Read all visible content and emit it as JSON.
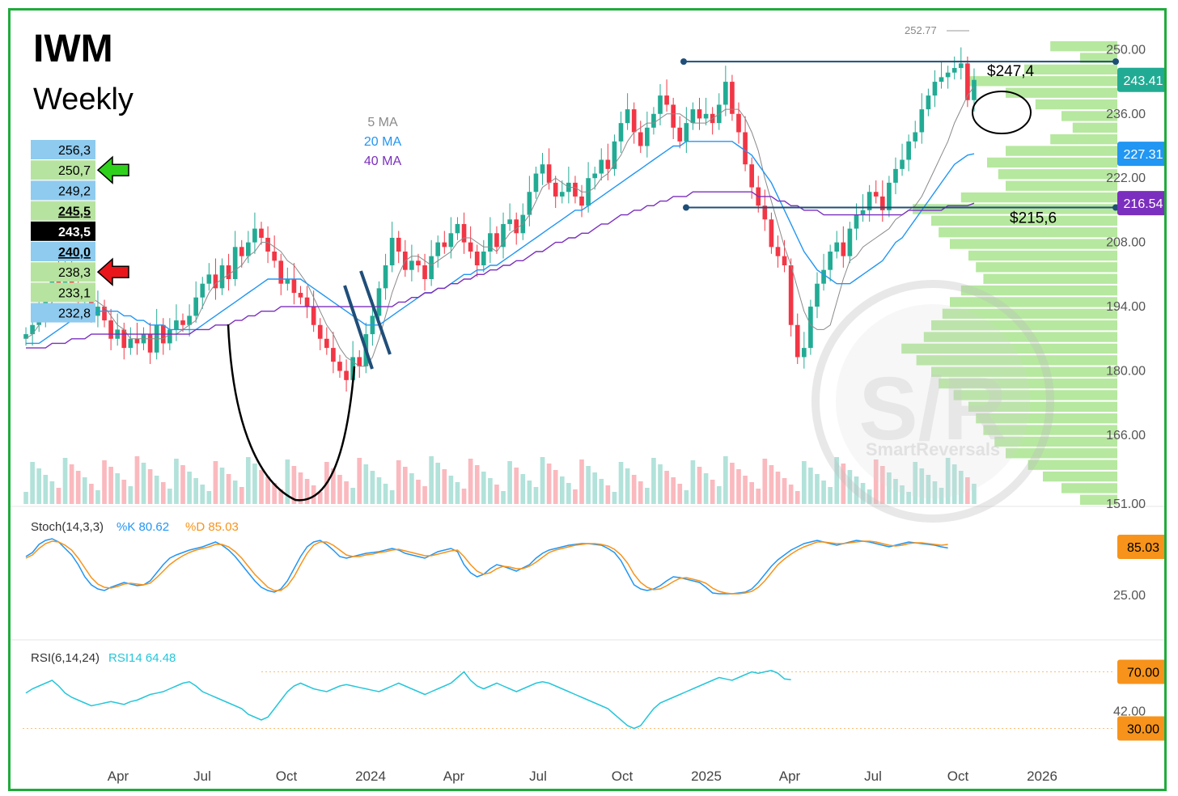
{
  "title": "IWM",
  "subtitle": "Weekly",
  "ma_legend": [
    "5 MA",
    "20 MA",
    "40 MA"
  ],
  "colors": {
    "frame": "#1fab3c",
    "up": "#22ab94",
    "down": "#f23645",
    "ma5": "#8a8a8a",
    "ma20": "#2196f3",
    "ma40": "#7b2fbe",
    "stochK": "#2196f3",
    "stochD": "#f7931a",
    "rsi": "#26c6da",
    "profile": "#9ee07f",
    "level_line": "#1f4e79"
  },
  "levels_table": [
    {
      "value": "256,3",
      "style": "blue"
    },
    {
      "value": "250,7",
      "style": "green",
      "arrow": "green-arrow-left"
    },
    {
      "value": "249,2",
      "style": "blue"
    },
    {
      "value": "245,5",
      "style": "green-bold"
    },
    {
      "value": "243,5",
      "style": "black"
    },
    {
      "value": "240,0",
      "style": "blue-bold"
    },
    {
      "value": "238,3",
      "style": "green",
      "arrow": "red-arrow-left"
    },
    {
      "value": "233,1",
      "style": "green"
    },
    {
      "value": "232,8",
      "style": "blue"
    }
  ],
  "annotations": {
    "resistance_label": "$247,4",
    "support_label": "$215,6",
    "high_label": "252.77"
  },
  "price_axis": {
    "ticks": [
      "250.00",
      "236.00",
      "222.00",
      "208.00",
      "194.00",
      "180.00",
      "166.00",
      "151.00"
    ],
    "badges": [
      {
        "text": "243.41",
        "color": "#22ab94"
      },
      {
        "text": "227.31",
        "color": "#2196f3"
      },
      {
        "text": "216.54",
        "color": "#7b2fbe"
      }
    ]
  },
  "stoch": {
    "label": "Stoch(14,3,3)",
    "k_label": "%K 80.62",
    "d_label": "%D 85.03",
    "badge": "85.03",
    "ticks": [
      "25.00"
    ]
  },
  "rsi": {
    "label": "RSI(6,14,24)",
    "value_label": "RSI14 64.48",
    "badges": [
      "70.00",
      "30.00"
    ],
    "ticks": [
      "42.00"
    ]
  },
  "time_axis": [
    "Apr",
    "Jul",
    "Oct",
    "2024",
    "Apr",
    "Jul",
    "Oct",
    "2025",
    "Apr",
    "Jul",
    "Oct",
    "2026"
  ],
  "watermark": "SmartReversals",
  "chart_data": {
    "type": "candlestick",
    "title": "IWM",
    "subtitle": "Weekly",
    "ylim": [
      151,
      255
    ],
    "close_series": [
      188,
      190,
      192,
      196,
      201,
      199,
      203,
      198,
      195,
      196,
      192,
      194,
      191,
      187,
      189,
      185,
      187,
      186,
      188,
      184,
      190,
      186,
      189,
      191,
      190,
      192,
      196,
      199,
      201,
      198,
      203,
      200,
      207,
      205,
      208,
      211,
      209,
      206,
      204,
      199,
      200,
      197,
      196,
      194,
      190,
      187,
      185,
      182,
      180,
      178,
      183,
      181,
      188,
      192,
      198,
      203,
      209,
      206,
      202,
      204,
      203,
      200,
      205,
      208,
      207,
      210,
      212,
      208,
      206,
      203,
      206,
      210,
      207,
      212,
      213,
      210,
      214,
      219,
      223,
      225,
      221,
      218,
      219,
      221,
      218,
      216,
      222,
      223,
      226,
      224,
      230,
      234,
      237,
      232,
      229,
      233,
      236,
      240,
      238,
      233,
      230,
      234,
      237,
      235,
      236,
      234,
      238,
      243,
      236,
      232,
      225,
      220,
      216,
      213,
      207,
      205,
      203,
      190,
      183,
      185,
      194,
      199,
      202,
      206,
      208,
      205,
      211,
      214,
      215,
      219,
      218,
      215,
      221,
      224,
      226,
      230,
      232,
      237,
      240,
      243,
      244,
      245,
      246,
      247,
      239,
      243.41
    ],
    "ma5": [
      187,
      188,
      190,
      193,
      195,
      197,
      199,
      199,
      199,
      198,
      196,
      195,
      194,
      192,
      190,
      189,
      187,
      187,
      187,
      187,
      187,
      187,
      188,
      188,
      189,
      190,
      191,
      194,
      197,
      199,
      200,
      201,
      202,
      203,
      205,
      206,
      208,
      208,
      207,
      206,
      204,
      203,
      201,
      199,
      196,
      193,
      190,
      188,
      185,
      183,
      182,
      181,
      181,
      183,
      187,
      192,
      197,
      201,
      204,
      205,
      205,
      204,
      203,
      204,
      205,
      206,
      208,
      209,
      209,
      208,
      207,
      207,
      206,
      208,
      210,
      211,
      212,
      214,
      217,
      220,
      221,
      222,
      221,
      220,
      220,
      219,
      219,
      220,
      222,
      223,
      225,
      227,
      230,
      232,
      233,
      234,
      234,
      235,
      236,
      236,
      236,
      235,
      234,
      234,
      234,
      235,
      236,
      237,
      237,
      237,
      235,
      232,
      228,
      222,
      217,
      212,
      207,
      203,
      198,
      193,
      190,
      189,
      189,
      190,
      195,
      200,
      204,
      205,
      207,
      208,
      209,
      210,
      211,
      213,
      214,
      215,
      216,
      218,
      221,
      224,
      227,
      230,
      234,
      237,
      240,
      242
    ],
    "ma20": [
      186,
      186,
      186,
      187,
      188,
      189,
      190,
      191,
      192,
      192,
      192,
      193,
      193,
      193,
      193,
      192,
      192,
      191,
      191,
      190,
      190,
      190,
      189,
      189,
      189,
      189,
      189,
      190,
      191,
      192,
      193,
      194,
      195,
      196,
      197,
      198,
      199,
      200,
      200,
      200,
      200,
      200,
      200,
      199,
      198,
      197,
      196,
      195,
      194,
      193,
      192,
      191,
      190,
      190,
      190,
      191,
      192,
      193,
      194,
      195,
      196,
      197,
      197,
      198,
      198,
      199,
      200,
      201,
      201,
      202,
      202,
      203,
      203,
      204,
      205,
      206,
      207,
      208,
      209,
      210,
      211,
      212,
      213,
      214,
      215,
      215,
      216,
      217,
      218,
      219,
      220,
      221,
      222,
      223,
      224,
      225,
      226,
      227,
      228,
      229,
      229,
      230,
      230,
      230,
      230,
      230,
      230,
      230,
      230,
      229,
      228,
      227,
      225,
      223,
      221,
      218,
      215,
      212,
      209,
      206,
      204,
      202,
      201,
      200,
      199,
      199,
      199,
      200,
      201,
      202,
      203,
      204,
      206,
      208,
      209,
      211,
      213,
      215,
      217,
      219,
      221,
      223,
      225,
      226,
      227,
      227.31
    ],
    "ma40": [
      185,
      185,
      185,
      185,
      186,
      186,
      186,
      187,
      187,
      187,
      188,
      188,
      188,
      188,
      188,
      188,
      188,
      188,
      188,
      188,
      188,
      188,
      188,
      188,
      188,
      188,
      189,
      189,
      189,
      190,
      190,
      190,
      191,
      191,
      192,
      192,
      193,
      193,
      193,
      194,
      194,
      194,
      194,
      194,
      194,
      194,
      194,
      194,
      194,
      194,
      194,
      194,
      194,
      194,
      194,
      194,
      194,
      195,
      195,
      196,
      196,
      197,
      197,
      198,
      198,
      199,
      199,
      200,
      200,
      201,
      201,
      202,
      202,
      203,
      203,
      204,
      204,
      205,
      206,
      206,
      207,
      208,
      208,
      209,
      209,
      210,
      210,
      211,
      212,
      212,
      213,
      214,
      214,
      215,
      215,
      216,
      216,
      217,
      217,
      218,
      218,
      218,
      219,
      219,
      219,
      219,
      219,
      219,
      219,
      219,
      219,
      219,
      218,
      218,
      218,
      217,
      217,
      216,
      216,
      215,
      215,
      215,
      214,
      214,
      214,
      214,
      214,
      214,
      214,
      214,
      214,
      214,
      214,
      214,
      214,
      215,
      215,
      215,
      215,
      215,
      215,
      216,
      216,
      216,
      216,
      216.54
    ],
    "stoch_k": [
      70,
      75,
      85,
      90,
      92,
      88,
      80,
      72,
      60,
      45,
      35,
      30,
      28,
      32,
      35,
      38,
      36,
      34,
      35,
      40,
      50,
      60,
      68,
      72,
      75,
      78,
      80,
      82,
      85,
      88,
      84,
      78,
      70,
      60,
      50,
      40,
      32,
      28,
      26,
      30,
      40,
      55,
      70,
      82,
      88,
      90,
      85,
      78,
      70,
      68,
      70,
      72,
      74,
      75,
      76,
      78,
      80,
      78,
      74,
      72,
      70,
      68,
      72,
      76,
      78,
      80,
      76,
      60,
      50,
      45,
      48,
      55,
      60,
      58,
      55,
      52,
      56,
      60,
      68,
      74,
      78,
      80,
      82,
      84,
      85,
      86,
      86,
      85,
      84,
      80,
      75,
      65,
      50,
      35,
      30,
      28,
      30,
      34,
      40,
      45,
      44,
      42,
      40,
      38,
      32,
      25,
      24,
      24,
      24,
      25,
      26,
      30,
      38,
      48,
      58,
      66,
      72,
      78,
      82,
      86,
      88,
      90,
      88,
      86,
      84,
      86,
      88,
      90,
      89,
      88,
      86,
      84,
      82,
      84,
      86,
      88,
      87,
      86,
      85,
      84,
      82,
      80.62
    ],
    "stoch_d": [
      68,
      72,
      80,
      86,
      89,
      88,
      84,
      78,
      68,
      56,
      44,
      36,
      32,
      31,
      33,
      36,
      37,
      36,
      35,
      37,
      44,
      52,
      60,
      66,
      71,
      75,
      78,
      80,
      82,
      85,
      85,
      82,
      76,
      68,
      58,
      48,
      40,
      32,
      28,
      28,
      34,
      45,
      60,
      74,
      84,
      88,
      88,
      84,
      78,
      72,
      70,
      70,
      72,
      73,
      75,
      76,
      78,
      79,
      77,
      75,
      73,
      71,
      71,
      73,
      75,
      77,
      78,
      70,
      60,
      52,
      48,
      50,
      55,
      58,
      57,
      55,
      55,
      58,
      63,
      69,
      75,
      78,
      80,
      82,
      84,
      85,
      86,
      86,
      85,
      83,
      79,
      72,
      62,
      48,
      38,
      32,
      29,
      30,
      34,
      39,
      43,
      44,
      42,
      40,
      37,
      31,
      27,
      25,
      24,
      24,
      25,
      27,
      32,
      40,
      50,
      60,
      67,
      73,
      78,
      82,
      85,
      88,
      88,
      87,
      86,
      86,
      87,
      88,
      89,
      89,
      88,
      86,
      84,
      83,
      84,
      86,
      87,
      87,
      86,
      85,
      84,
      85.03
    ],
    "rsi14": [
      55,
      58,
      60,
      62,
      64,
      60,
      55,
      52,
      50,
      48,
      46,
      47,
      48,
      49,
      48,
      47,
      49,
      50,
      52,
      54,
      55,
      56,
      58,
      60,
      62,
      63,
      60,
      56,
      54,
      52,
      50,
      48,
      46,
      44,
      40,
      38,
      36,
      38,
      44,
      50,
      56,
      60,
      62,
      60,
      58,
      57,
      56,
      58,
      60,
      61,
      60,
      59,
      58,
      57,
      56,
      58,
      60,
      62,
      60,
      58,
      56,
      54,
      56,
      58,
      60,
      62,
      66,
      70,
      64,
      60,
      58,
      60,
      62,
      60,
      58,
      56,
      58,
      60,
      62,
      63,
      62,
      60,
      58,
      56,
      54,
      52,
      50,
      48,
      46,
      44,
      40,
      36,
      32,
      30,
      32,
      38,
      44,
      48,
      50,
      52,
      54,
      56,
      58,
      60,
      62,
      64,
      66,
      65,
      64,
      66,
      68,
      70,
      69,
      70,
      71,
      69,
      65,
      64.48
    ],
    "volume_profile_note": "horizontal volume-by-price histogram on right side"
  }
}
